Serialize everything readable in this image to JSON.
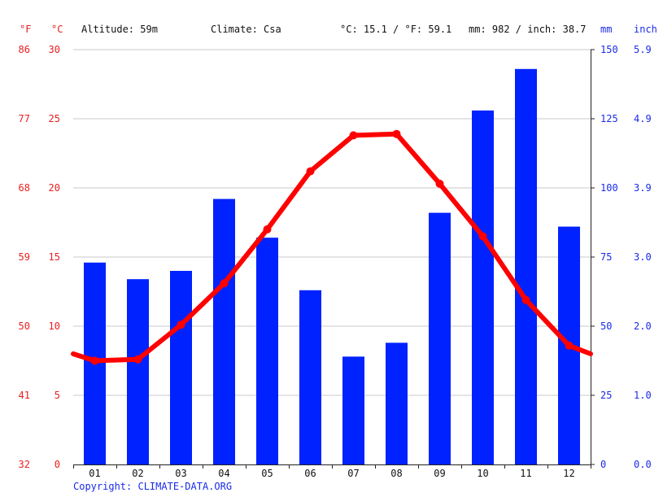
{
  "header": {
    "unit_f": "°F",
    "unit_c": "°C",
    "altitude": "Altitude: 59m",
    "climate": "Climate: Csa",
    "temp_avg": "°C: 15.1 / °F: 59.1",
    "precip_total": "mm: 982 / inch: 38.7",
    "unit_mm": "mm",
    "unit_inch": "inch"
  },
  "copyright": "Copyright: CLIMATE-DATA.ORG",
  "colors": {
    "bar": "#0022ff",
    "line": "#ff0000",
    "grid": "#c8c8c8",
    "red_text": "#e8201f",
    "blue_text": "#1a2be8"
  },
  "chart_data": {
    "type": "bar+line",
    "categories": [
      "01",
      "02",
      "03",
      "04",
      "05",
      "06",
      "07",
      "08",
      "09",
      "10",
      "11",
      "12"
    ],
    "precipitation_mm": [
      73,
      67,
      70,
      96,
      82,
      63,
      39,
      44,
      91,
      128,
      143,
      86
    ],
    "temperature_c": [
      7.5,
      7.6,
      10.1,
      13.1,
      17.0,
      21.2,
      23.8,
      23.9,
      20.3,
      16.5,
      11.9,
      8.6
    ],
    "temp_line_start_c": 8.0,
    "temp_line_end_c": 8.0,
    "left_axis_c": {
      "range": [
        0,
        30
      ],
      "ticks": [
        "0",
        "5",
        "10",
        "15",
        "20",
        "25",
        "30"
      ]
    },
    "left_axis_f": {
      "ticks": [
        "32",
        "41",
        "50",
        "59",
        "68",
        "77",
        "86"
      ]
    },
    "right_axis_mm": {
      "range": [
        0,
        150
      ],
      "ticks": [
        "0",
        "25",
        "50",
        "75",
        "100",
        "125",
        "150"
      ]
    },
    "right_axis_inch": {
      "ticks": [
        "0.0",
        "1.0",
        "2.0",
        "3.0",
        "3.9",
        "4.9",
        "5.9"
      ]
    },
    "grid": true
  }
}
